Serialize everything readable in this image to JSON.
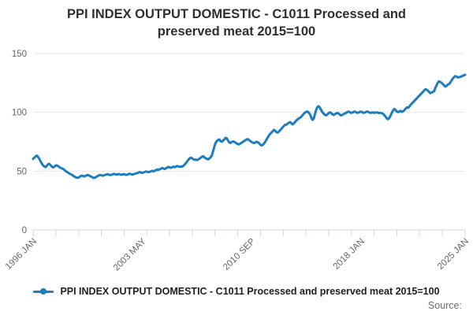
{
  "header": {
    "title_line1": "PPI INDEX OUTPUT DOMESTIC - C1011 Processed and",
    "title_line2": "preserved meat 2015=100"
  },
  "legend": {
    "label": "PPI INDEX OUTPUT DOMESTIC - C1011 Processed and preserved meat 2015=100"
  },
  "footer": {
    "source_label": "Source:"
  },
  "colors": {
    "series": "#1d7dbf",
    "gridline": "#e6e6e6",
    "axis": "#ccd6eb",
    "axis_label": "#666666"
  },
  "chart_data": {
    "type": "line",
    "title": "PPI INDEX OUTPUT DOMESTIC - C1011 Processed and preserved meat 2015=100",
    "xlabel": "",
    "ylabel": "",
    "frequency": "monthly",
    "x_start": "1996 JAN",
    "x_end": "2025 JAN",
    "x_tick_labels": [
      "1996 JAN",
      "2003 MAY",
      "2010 SEP",
      "2018 JAN",
      "2025 JAN"
    ],
    "x_tick_positions": [
      0,
      0.2529,
      0.5057,
      0.7586,
      1
    ],
    "minor_tick_count": 20,
    "y_ticks": [
      0,
      50,
      100,
      150
    ],
    "ylim": [
      0,
      155
    ],
    "grid": "horizontal",
    "legend_position": "bottom",
    "series": [
      {
        "name": "PPI INDEX OUTPUT DOMESTIC - C1011 Processed and preserved meat 2015=100",
        "color": "#1d7dbf",
        "values": [
          60.5,
          61.5,
          62.5,
          63.2,
          62.0,
          60.5,
          58.5,
          56.5,
          55.0,
          54.0,
          53.5,
          54.5,
          55.8,
          56.2,
          55.2,
          54.0,
          53.2,
          53.6,
          54.6,
          55.0,
          54.4,
          53.6,
          52.9,
          52.3,
          52.0,
          51.2,
          50.3,
          49.5,
          48.8,
          48.2,
          47.6,
          47.0,
          46.3,
          45.6,
          44.9,
          44.6,
          44.3,
          44.8,
          45.6,
          46.2,
          46.0,
          45.5,
          45.9,
          46.4,
          46.8,
          46.3,
          45.8,
          45.2,
          44.6,
          44.2,
          44.5,
          45.2,
          45.9,
          46.4,
          46.8,
          46.5,
          46.1,
          46.4,
          46.8,
          47.1,
          47.4,
          47.0,
          46.6,
          46.9,
          47.3,
          47.7,
          47.4,
          47.0,
          47.3,
          47.6,
          47.2,
          46.9,
          47.2,
          47.5,
          47.1,
          46.8,
          47.1,
          47.5,
          47.8,
          47.4,
          47.1,
          47.4,
          47.8,
          48.1,
          48.4,
          48.8,
          49.2,
          48.8,
          48.5,
          48.9,
          49.3,
          49.7,
          49.4,
          49.1,
          49.5,
          49.9,
          50.3,
          49.9,
          50.4,
          50.9,
          51.4,
          51.0,
          51.6,
          52.1,
          52.7,
          52.2,
          51.8,
          52.4,
          53.0,
          53.6,
          53.2,
          52.8,
          53.3,
          53.8,
          53.4,
          53.9,
          54.4,
          54.0,
          53.6,
          54.1,
          53.8,
          54.5,
          55.5,
          56.8,
          58.2,
          59.6,
          60.8,
          61.4,
          61.0,
          60.2,
          59.6,
          59.9,
          59.4,
          59.9,
          60.6,
          61.4,
          62.2,
          62.7,
          61.8,
          60.9,
          60.5,
          60.0,
          60.8,
          61.8,
          63.5,
          67.0,
          71.0,
          74.0,
          75.5,
          76.5,
          77.0,
          75.5,
          75.0,
          76.0,
          77.0,
          78.3,
          78.0,
          76.0,
          74.5,
          74.0,
          74.8,
          75.2,
          75.0,
          74.2,
          73.5,
          73.0,
          72.8,
          73.5,
          74.2,
          75.0,
          75.6,
          76.3,
          77.0,
          77.2,
          76.4,
          75.6,
          74.8,
          74.2,
          73.9,
          74.4,
          75.0,
          74.6,
          73.8,
          72.6,
          71.8,
          72.4,
          73.5,
          75.0,
          76.8,
          78.6,
          80.4,
          81.7,
          82.8,
          84.0,
          85.0,
          84.2,
          83.2,
          82.8,
          83.6,
          84.8,
          86.0,
          87.3,
          88.4,
          89.5,
          89.5,
          90.4,
          91.2,
          91.7,
          90.8,
          89.8,
          90.6,
          91.8,
          93.0,
          94.0,
          94.8,
          95.4,
          96.2,
          97.5,
          98.8,
          99.8,
          100.4,
          100.7,
          99.8,
          98.4,
          95.8,
          93.6,
          94.5,
          98.4,
          102.0,
          104.5,
          105.2,
          104.0,
          102.0,
          100.2,
          99.0,
          98.0,
          97.4,
          98.2,
          99.2,
          100.0,
          99.6,
          98.4,
          97.8,
          98.4,
          99.0,
          99.6,
          99.0,
          98.2,
          97.3,
          97.8,
          98.4,
          99.0,
          99.6,
          100.1,
          100.7,
          100.2,
          99.6,
          99.8,
          100.2,
          100.7,
          100.2,
          99.6,
          99.8,
          100.2,
          100.7,
          100.2,
          99.6,
          99.8,
          100.2,
          100.7,
          100.4,
          99.8,
          99.6,
          99.8,
          100.0,
          99.6,
          99.8,
          100.0,
          99.6,
          99.4,
          99.6,
          99.2,
          98.6,
          97.6,
          96.2,
          94.8,
          94.2,
          95.4,
          97.5,
          99.6,
          101.8,
          102.9,
          102.0,
          100.7,
          100.2,
          100.7,
          101.3,
          100.4,
          100.9,
          101.8,
          103.0,
          104.2,
          103.8,
          104.8,
          106.3,
          107.4,
          108.5,
          109.6,
          110.7,
          111.8,
          113.0,
          114.1,
          115.2,
          116.3,
          117.4,
          118.5,
          119.7,
          119.2,
          118.5,
          117.4,
          116.3,
          116.8,
          117.4,
          118.0,
          120.8,
          123.0,
          125.2,
          126.4,
          125.8,
          125.2,
          124.1,
          123.0,
          121.9,
          122.5,
          123.5,
          124.1,
          125.2,
          127.0,
          128.6,
          129.8,
          130.8,
          130.4,
          129.7,
          129.9,
          130.1,
          130.6,
          131.0,
          131.5,
          131.9
        ]
      }
    ]
  }
}
